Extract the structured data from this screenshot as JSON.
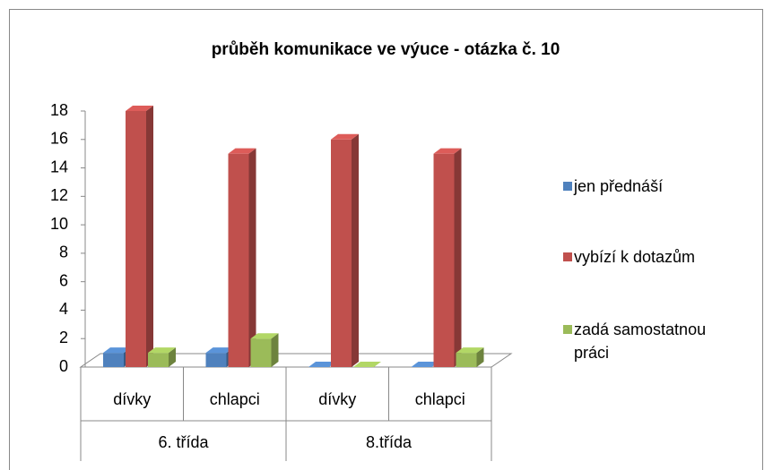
{
  "chart_data": {
    "type": "bar3d",
    "title": "průběh komunikace ve výuce - otázka č. 10",
    "categories": [
      "dívky",
      "chlapci",
      "dívky",
      "chlapci"
    ],
    "category_groups": [
      "6. třída",
      "8.třída"
    ],
    "series": [
      {
        "name": "jen přednáší",
        "color": "#4f81bd",
        "values": [
          1,
          1,
          0,
          0
        ]
      },
      {
        "name": "vybízí k dotazům",
        "color": "#c0504d",
        "values": [
          18,
          15,
          16,
          15
        ]
      },
      {
        "name": "zadá samostatnou práci",
        "color": "#9bbb59",
        "values": [
          1,
          2,
          0,
          1
        ]
      }
    ],
    "ylim": [
      0,
      18
    ],
    "yticks": [
      0,
      2,
      4,
      6,
      8,
      10,
      12,
      14,
      16,
      18
    ],
    "legend": "right"
  }
}
